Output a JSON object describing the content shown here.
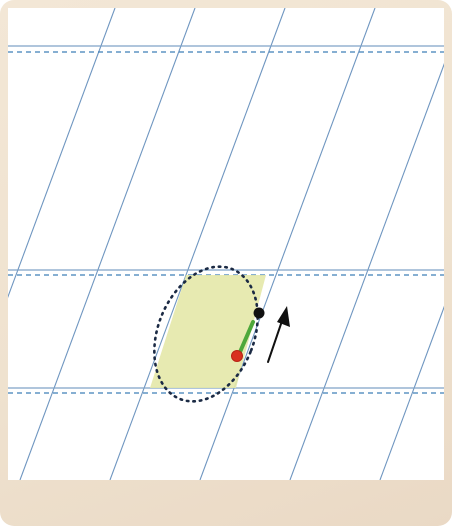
{
  "worksheet": {
    "paper_color": "#ffffff",
    "backing_color": "#efe2cf",
    "guide_line_color": "#7fa2c8",
    "dashed_line_color": "#3f7fb8",
    "slant_line_color": "#6f96c0",
    "letter_fill_color": "#e4e8a8",
    "trace_dot_color": "#1b2a44",
    "start_dot_color": "#111111",
    "end_dot_color": "#d9301f",
    "stroke_bar_color": "#4ea83b",
    "arrow_color": "#111111",
    "traced_letter": "o",
    "direction": "up"
  }
}
